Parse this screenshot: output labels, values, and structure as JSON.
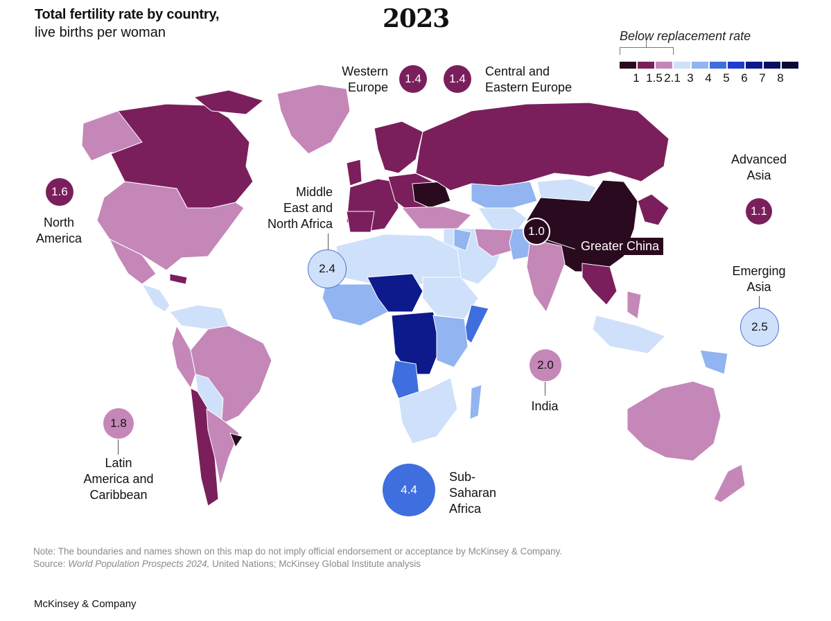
{
  "title": "Total fertility rate by country,",
  "subtitle": "live births per woman",
  "year": "2023",
  "legend": {
    "title": "Below replacement rate",
    "swatches": [
      {
        "color": "#2a0a1f"
      },
      {
        "color": "#7a1f5c"
      },
      {
        "color": "#c487b8"
      },
      {
        "color": "#cfe0fa"
      },
      {
        "color": "#92b4f0"
      },
      {
        "color": "#3f6fde"
      },
      {
        "color": "#1f3ccf"
      },
      {
        "color": "#0d1a8c"
      },
      {
        "color": "#0a1060"
      },
      {
        "color": "#060a35"
      }
    ],
    "ticks": [
      "1",
      "1.5",
      "2.1",
      "3",
      "4",
      "5",
      "6",
      "7",
      "8"
    ]
  },
  "regions": {
    "north_america": {
      "value": "1.6",
      "name_line1": "North",
      "name_line2": "America",
      "color": "#7a1f5c"
    },
    "latin_america": {
      "value": "1.8",
      "name_line1": "Latin",
      "name_line2": "America and",
      "name_line3": "Caribbean",
      "color": "#c487b8"
    },
    "western_europe": {
      "value": "1.4",
      "name_line1": "Western",
      "name_line2": "Europe",
      "color": "#7a1f5c"
    },
    "central_eastern_europe": {
      "value": "1.4",
      "name_line1": "Central and",
      "name_line2": "Eastern Europe",
      "color": "#7a1f5c"
    },
    "mena": {
      "value": "2.4",
      "name_line1": "Middle",
      "name_line2": "East and",
      "name_line3": "North Africa",
      "color": "#cfe0fa"
    },
    "sub_saharan_africa": {
      "value": "4.4",
      "name_line1": "Sub-",
      "name_line2": "Saharan",
      "name_line3": "Africa",
      "color": "#3f6fde"
    },
    "india": {
      "value": "2.0",
      "name_line1": "India",
      "color": "#c487b8"
    },
    "greater_china": {
      "value": "1.0",
      "name_line1": "Greater China",
      "color": "#2a0a1f"
    },
    "advanced_asia": {
      "value": "1.1",
      "name_line1": "Advanced",
      "name_line2": "Asia",
      "color": "#7a1f5c"
    },
    "emerging_asia": {
      "value": "2.5",
      "name_line1": "Emerging",
      "name_line2": "Asia",
      "color": "#cfe0fa"
    }
  },
  "note": {
    "line1": "Note: The boundaries and names shown on this map do not imply official endorsement or acceptance by McKinsey & Company.",
    "source_prefix": "Source: ",
    "source_italic": "World Population Prospects 2024,",
    "source_rest": " United Nations; McKinsey Global Institute analysis"
  },
  "brand": "McKinsey & Company"
}
